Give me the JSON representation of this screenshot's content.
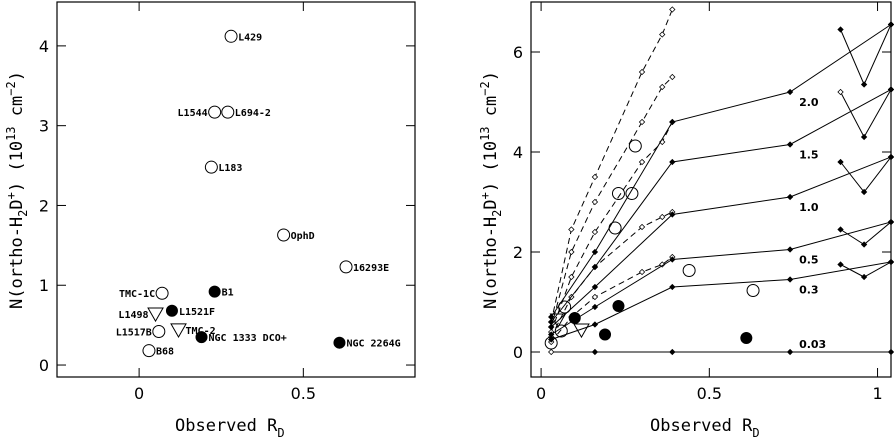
{
  "chart_data": [
    {
      "type": "scatter",
      "xlabel": "Observed R",
      "xlabel_sub": "D",
      "ylabel": "N(ortho-H2D+) (10^13 cm^-2)",
      "xlim": [
        -0.25,
        0.84
      ],
      "ylim": [
        -0.15,
        4.55
      ],
      "xticks": [
        0,
        0.5
      ],
      "xticklabels": [
        "0",
        "0.5"
      ],
      "yticks": [
        0,
        1,
        2,
        3,
        4
      ],
      "yticklabels": [
        "0",
        "1",
        "2",
        "3",
        "4"
      ],
      "points": [
        {
          "name": "L429",
          "x": 0.28,
          "y": 4.12,
          "marker": "open-circle"
        },
        {
          "name": "L1544",
          "x": 0.23,
          "y": 3.17,
          "marker": "open-circle"
        },
        {
          "name": "L694-2",
          "x": 0.27,
          "y": 3.17,
          "marker": "open-circle"
        },
        {
          "name": "L183",
          "x": 0.22,
          "y": 2.48,
          "marker": "open-circle"
        },
        {
          "name": "OphD",
          "x": 0.44,
          "y": 1.63,
          "marker": "open-circle"
        },
        {
          "name": "16293E",
          "x": 0.63,
          "y": 1.23,
          "marker": "open-circle"
        },
        {
          "name": "TMC-1C",
          "x": 0.07,
          "y": 0.9,
          "marker": "open-circle"
        },
        {
          "name": "B1",
          "x": 0.23,
          "y": 0.92,
          "marker": "filled-circle"
        },
        {
          "name": "L1498",
          "x": 0.05,
          "y": 0.64,
          "marker": "open-triangle"
        },
        {
          "name": "L1521F",
          "x": 0.1,
          "y": 0.68,
          "marker": "filled-circle"
        },
        {
          "name": "TMC-2",
          "x": 0.12,
          "y": 0.44,
          "marker": "open-triangle"
        },
        {
          "name": "L1517B",
          "x": 0.06,
          "y": 0.42,
          "marker": "open-circle"
        },
        {
          "name": "NGC 1333 DCO+",
          "x": 0.19,
          "y": 0.35,
          "marker": "filled-circle"
        },
        {
          "name": "NGC 2264G",
          "x": 0.61,
          "y": 0.28,
          "marker": "filled-circle"
        },
        {
          "name": "B68",
          "x": 0.03,
          "y": 0.18,
          "marker": "open-circle"
        }
      ]
    },
    {
      "type": "line",
      "xlabel": "Observed R",
      "xlabel_sub": "D",
      "ylabel": "N(ortho-H2D+) (10^13 cm^-2)",
      "xlim": [
        -0.03,
        1.04
      ],
      "ylim": [
        -0.5,
        7.0
      ],
      "xticks": [
        0,
        0.5,
        1
      ],
      "xticklabels": [
        "0",
        "0.5",
        "1"
      ],
      "yticks": [
        0,
        2,
        4,
        6
      ],
      "yticklabels": [
        "0",
        "2",
        "4",
        "6"
      ],
      "solid_series": [
        {
          "name": "2.0",
          "x": [
            0.03,
            0.16,
            0.39,
            0.74,
            1.04
          ],
          "y": [
            0.7,
            2.0,
            4.6,
            5.2,
            6.55
          ]
        },
        {
          "name": "1.5",
          "x": [
            0.03,
            0.16,
            0.39,
            0.74,
            1.04
          ],
          "y": [
            0.6,
            1.7,
            3.8,
            4.15,
            5.25
          ]
        },
        {
          "name": "1.0",
          "x": [
            0.03,
            0.16,
            0.39,
            0.74,
            1.04
          ],
          "y": [
            0.5,
            1.3,
            2.75,
            3.1,
            3.9
          ]
        },
        {
          "name": "0.5",
          "x": [
            0.03,
            0.16,
            0.39,
            0.74,
            1.04
          ],
          "y": [
            0.35,
            0.9,
            1.85,
            2.05,
            2.6
          ]
        },
        {
          "name": "0.3",
          "x": [
            0.03,
            0.16,
            0.39,
            0.74,
            1.04
          ],
          "y": [
            0.25,
            0.55,
            1.3,
            1.45,
            1.8
          ]
        },
        {
          "name": "0.03",
          "x": [
            0.03,
            0.16,
            0.39,
            0.74,
            1.04
          ],
          "y": [
            0.0,
            0.0,
            0.0,
            0.0,
            0.0
          ]
        }
      ],
      "dashed_series": [
        {
          "x": [
            0.03,
            0.09,
            0.16,
            0.3,
            0.36,
            0.39
          ],
          "y": [
            0.6,
            2.45,
            3.5,
            5.6,
            6.35,
            6.85
          ]
        },
        {
          "x": [
            0.03,
            0.09,
            0.16,
            0.3,
            0.36,
            0.39
          ],
          "y": [
            0.5,
            2.0,
            3.0,
            4.6,
            5.3,
            5.5
          ]
        },
        {
          "x": [
            0.03,
            0.09,
            0.16,
            0.3,
            0.36,
            0.39
          ],
          "y": [
            0.4,
            1.5,
            2.4,
            3.8,
            4.2,
            4.6
          ]
        },
        {
          "x": [
            0.03,
            0.09,
            0.16,
            0.3,
            0.36,
            0.39
          ],
          "y": [
            0.3,
            1.1,
            1.7,
            2.5,
            2.7,
            2.8
          ]
        },
        {
          "x": [
            0.03,
            0.09,
            0.16,
            0.3,
            0.36,
            0.39
          ],
          "y": [
            0.2,
            0.7,
            1.1,
            1.6,
            1.75,
            1.9
          ]
        }
      ],
      "vee_series": [
        {
          "x": [
            0.89,
            0.96,
            1.04
          ],
          "y": [
            6.45,
            5.35,
            6.55
          ]
        },
        {
          "x": [
            0.89,
            0.96,
            1.04
          ],
          "y": [
            5.2,
            4.3,
            5.25
          ]
        },
        {
          "x": [
            0.89,
            0.96,
            1.04
          ],
          "y": [
            3.8,
            3.2,
            3.9
          ]
        },
        {
          "x": [
            0.89,
            0.96,
            1.04
          ],
          "y": [
            2.45,
            2.15,
            2.6
          ]
        },
        {
          "x": [
            0.89,
            0.96,
            1.04
          ],
          "y": [
            1.75,
            1.5,
            1.8
          ]
        }
      ],
      "observed_points": [
        {
          "x": 0.28,
          "y": 4.12,
          "marker": "open-circle"
        },
        {
          "x": 0.23,
          "y": 3.17,
          "marker": "open-circle"
        },
        {
          "x": 0.27,
          "y": 3.17,
          "marker": "open-circle"
        },
        {
          "x": 0.22,
          "y": 2.48,
          "marker": "open-circle"
        },
        {
          "x": 0.44,
          "y": 1.63,
          "marker": "open-circle"
        },
        {
          "x": 0.63,
          "y": 1.23,
          "marker": "open-circle"
        },
        {
          "x": 0.07,
          "y": 0.9,
          "marker": "open-circle"
        },
        {
          "x": 0.23,
          "y": 0.92,
          "marker": "filled-circle"
        },
        {
          "x": 0.05,
          "y": 0.64,
          "marker": "open-triangle"
        },
        {
          "x": 0.1,
          "y": 0.68,
          "marker": "filled-circle"
        },
        {
          "x": 0.12,
          "y": 0.44,
          "marker": "open-triangle"
        },
        {
          "x": 0.06,
          "y": 0.42,
          "marker": "open-circle"
        },
        {
          "x": 0.19,
          "y": 0.35,
          "marker": "filled-circle"
        },
        {
          "x": 0.61,
          "y": 0.28,
          "marker": "filled-circle"
        },
        {
          "x": 0.03,
          "y": 0.18,
          "marker": "open-circle"
        }
      ]
    }
  ]
}
